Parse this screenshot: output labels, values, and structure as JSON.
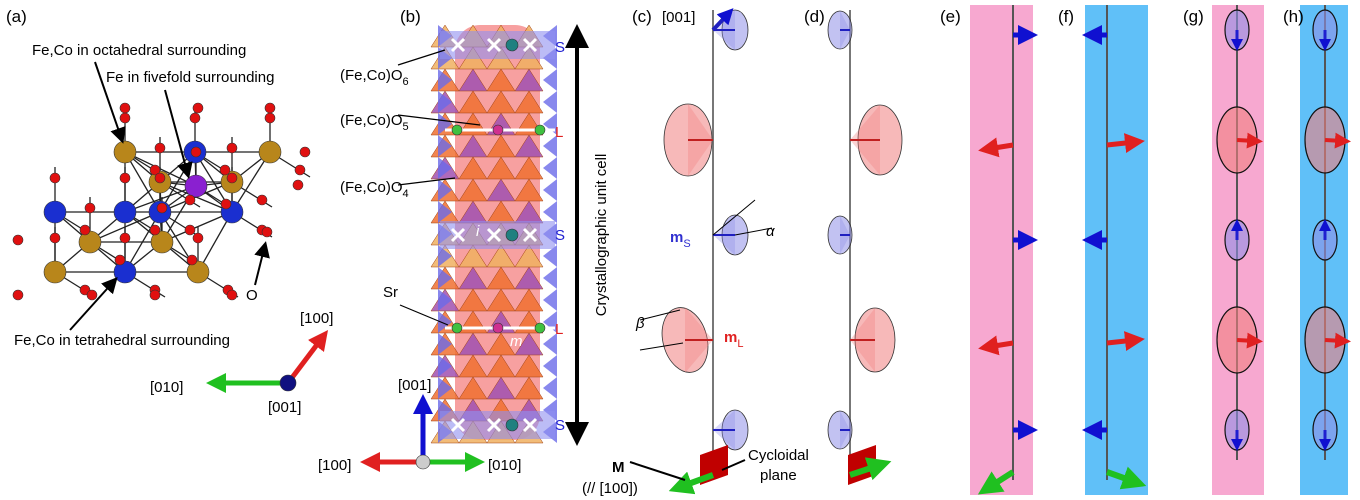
{
  "panels": {
    "a": {
      "label": "(a)",
      "annotations": [
        "Fe,Co in octahedral surrounding",
        "Fe in fivefold surrounding",
        "O",
        "Fe,Co in tetrahedral surrounding"
      ],
      "axes": [
        "[100]",
        "[010]",
        "[001]"
      ]
    },
    "b": {
      "label": "(b)",
      "polyhedra": [
        {
          "text": "(Fe,Co)O",
          "sub": "6"
        },
        {
          "text": "(Fe,Co)O",
          "sub": "5"
        },
        {
          "text": "(Fe,Co)O",
          "sub": "4"
        }
      ],
      "sr": "Sr",
      "layers": [
        "S",
        "L",
        "S",
        "L",
        "S"
      ],
      "sites": [
        "i",
        "m"
      ],
      "axes": [
        "[001]",
        "[100]",
        "[010]"
      ],
      "unit_cell": "Crystallographic unit cell"
    },
    "c": {
      "label": "(c)",
      "axis": "[001]",
      "angles": [
        "α",
        "β"
      ],
      "moments": [
        {
          "text": "m",
          "sub": "S"
        },
        {
          "text": "m",
          "sub": "L"
        }
      ],
      "magnetization": {
        "symbol": "M",
        "note": "(// [100])"
      },
      "plane": [
        "Cycloidal",
        "plane"
      ]
    },
    "d": {
      "label": "(d)"
    },
    "e": {
      "label": "(e)"
    },
    "f": {
      "label": "(f)"
    },
    "g": {
      "label": "(g)"
    },
    "h": {
      "label": "(h)"
    }
  }
}
